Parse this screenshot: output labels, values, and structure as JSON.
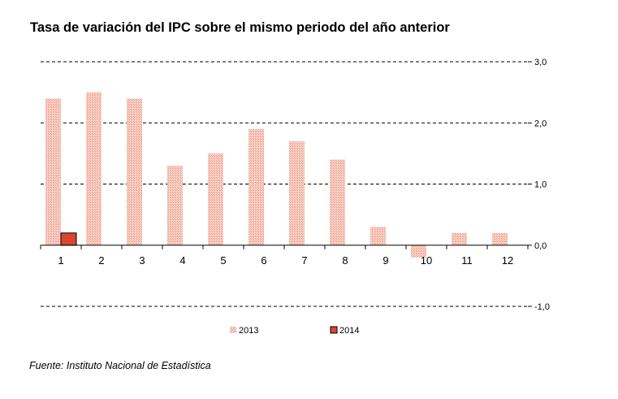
{
  "chart_data": {
    "type": "bar",
    "title": "Tasa de variación del IPC sobre el mismo periodo del año anterior",
    "categories": [
      "1",
      "2",
      "3",
      "4",
      "5",
      "6",
      "7",
      "8",
      "9",
      "10",
      "11",
      "12"
    ],
    "series": [
      {
        "name": "2013",
        "values": [
          2.4,
          2.5,
          2.4,
          1.3,
          1.5,
          1.9,
          1.7,
          1.4,
          0.3,
          -0.2,
          0.2,
          0.2
        ],
        "color": "#f4b9aa"
      },
      {
        "name": "2014",
        "values": [
          0.2,
          null,
          null,
          null,
          null,
          null,
          null,
          null,
          null,
          null,
          null,
          null
        ],
        "color": "#d9462e"
      }
    ],
    "ylim": [
      -1.0,
      3.0
    ],
    "yticks": [
      "3,0",
      "2,0",
      "1,0",
      "0,0",
      "-1,0"
    ],
    "ytick_values": [
      3.0,
      2.0,
      1.0,
      0.0,
      -1.0
    ],
    "xlabel": "",
    "ylabel": "",
    "grid": "dashed horizontal",
    "legend_position": "bottom"
  },
  "source": "Fuente: Instituto Nacional de Estadística"
}
